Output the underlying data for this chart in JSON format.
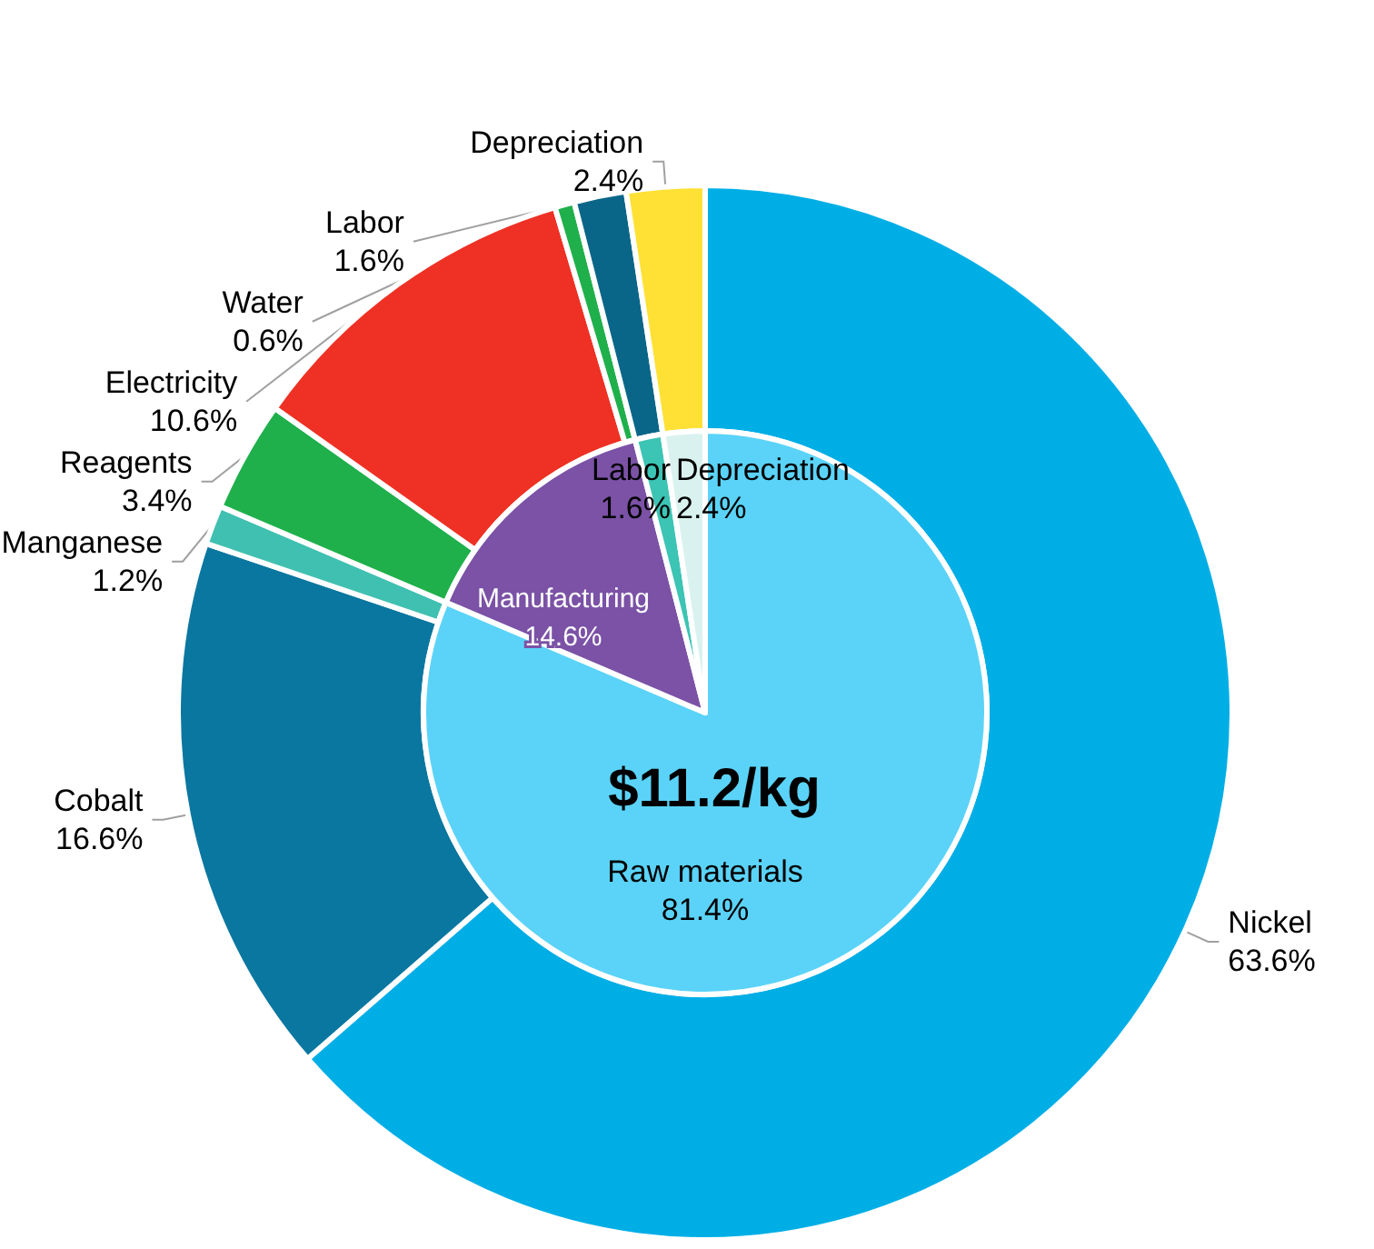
{
  "chart_data": [
    {
      "type": "pie",
      "title": "$11.2/kg",
      "categories": [
        "Raw materials",
        "Manufacturing",
        "Labor",
        "Depreciation"
      ],
      "values": [
        81.4,
        14.6,
        1.6,
        2.4
      ],
      "value_labels": [
        "81.4%",
        "14.6%",
        "1.6%",
        "2.4%"
      ],
      "colors": [
        "#5bd3f8",
        "#7b52a6",
        "#3cc4b4",
        "#d9f2f0"
      ]
    },
    {
      "type": "donut",
      "categories": [
        "Nickel",
        "Cobalt",
        "Manganese",
        "Reagents",
        "Electricity",
        "Water",
        "Labor",
        "Depreciation"
      ],
      "values": [
        63.6,
        16.6,
        1.2,
        3.4,
        10.6,
        0.6,
        1.6,
        2.4
      ],
      "value_labels": [
        "63.6%",
        "16.6%",
        "1.2%",
        "3.4%",
        "10.6%",
        "0.6%",
        "1.6%",
        "2.4%"
      ],
      "colors": [
        "#00aee6",
        "#0a77a0",
        "#40c0b0",
        "#1fb04c",
        "#ee3124",
        "#1fb04c",
        "#0a6688",
        "#ffe135"
      ]
    }
  ]
}
